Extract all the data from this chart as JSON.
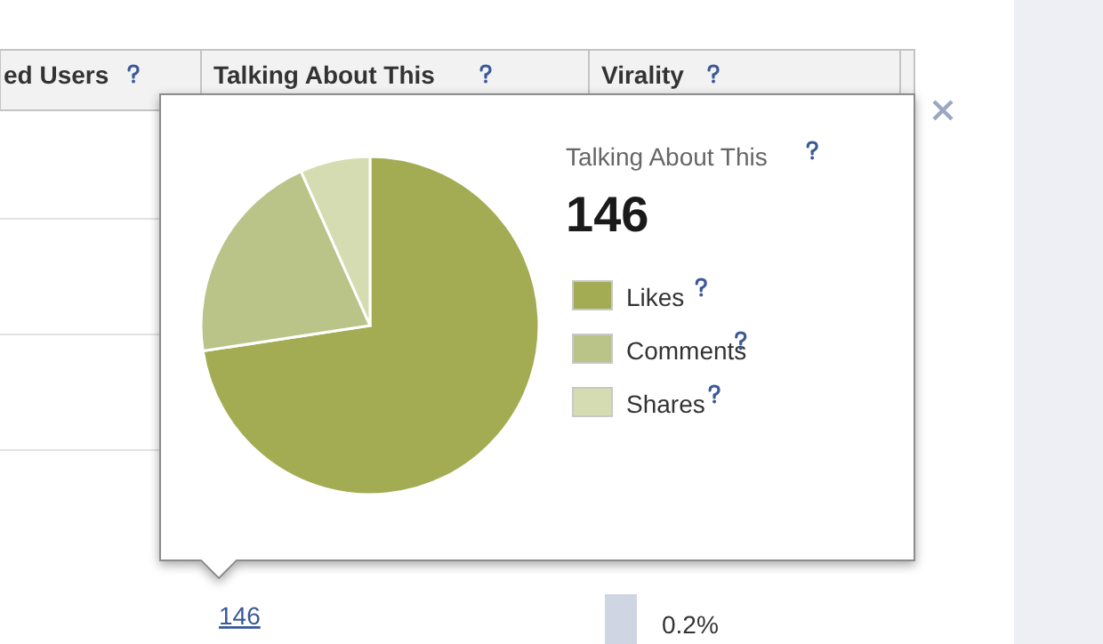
{
  "chart_data": {
    "type": "pie",
    "title": "Talking About This",
    "subtitle": "146",
    "categories": [
      "Likes",
      "Comments",
      "Shares"
    ],
    "values": [
      72.6,
      20.7,
      6.7
    ],
    "colors": [
      "#a3ac52",
      "#bac388",
      "#d6dcb2"
    ],
    "legend": "right",
    "annotations": [
      "ed Users",
      "Talking About This",
      "Virality",
      "146",
      "0.2%"
    ]
  }
}
